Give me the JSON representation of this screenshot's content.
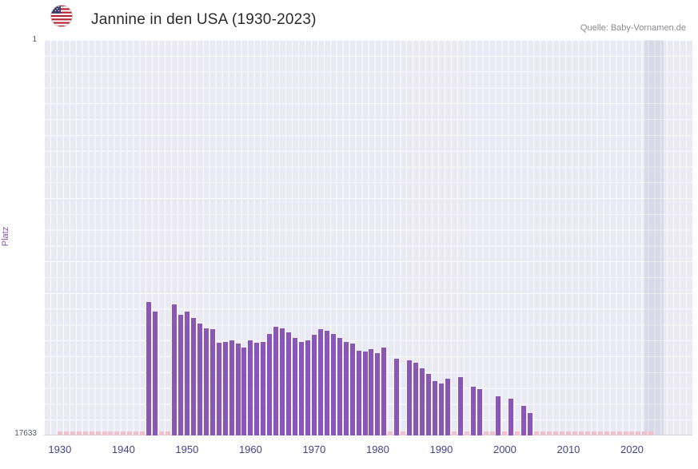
{
  "header": {
    "title": "Jannine in den USA (1930-2023)",
    "source": "Quelle: Baby-Vornamen.de",
    "flag_icon": "us-flag-icon"
  },
  "chart_data": {
    "type": "bar",
    "title": "Jannine in den USA (1930-2023)",
    "xlabel": "",
    "ylabel": "Platz",
    "y_axis": {
      "top_label": "1",
      "bottom_label": "17633",
      "min": 1,
      "max": 17633,
      "inverted": true
    },
    "x_ticks": [
      1930,
      1940,
      1950,
      1960,
      1970,
      1980,
      1990,
      2000,
      2010,
      2020
    ],
    "x_domain": [
      1927.5,
      2029.5
    ],
    "y_domain": [
      1,
      17633
    ],
    "grid": true,
    "legend": "none",
    "bar_color": "#8a57b4",
    "no_data_color": "#f3bfcb",
    "plot_background": "#eaeaf5",
    "highlight_band": {
      "from": 2022,
      "to": 2025,
      "color": "rgba(108,108,140,0.13)"
    },
    "series": [
      {
        "name": "Platz",
        "point_format": [
          "year",
          "rank"
        ],
        "points": [
          [
            1944,
            11700
          ],
          [
            1945,
            12100
          ],
          [
            1948,
            11800
          ],
          [
            1949,
            12250
          ],
          [
            1950,
            12100
          ],
          [
            1951,
            12400
          ],
          [
            1952,
            12650
          ],
          [
            1953,
            12850
          ],
          [
            1954,
            12900
          ],
          [
            1955,
            13500
          ],
          [
            1956,
            13450
          ],
          [
            1957,
            13400
          ],
          [
            1958,
            13550
          ],
          [
            1959,
            13700
          ],
          [
            1960,
            13400
          ],
          [
            1961,
            13500
          ],
          [
            1962,
            13450
          ],
          [
            1963,
            13100
          ],
          [
            1964,
            12800
          ],
          [
            1965,
            12850
          ],
          [
            1966,
            13050
          ],
          [
            1967,
            13300
          ],
          [
            1968,
            13450
          ],
          [
            1969,
            13400
          ],
          [
            1970,
            13150
          ],
          [
            1971,
            12900
          ],
          [
            1972,
            12950
          ],
          [
            1973,
            13100
          ],
          [
            1974,
            13300
          ],
          [
            1975,
            13450
          ],
          [
            1976,
            13550
          ],
          [
            1977,
            13850
          ],
          [
            1978,
            13900
          ],
          [
            1979,
            13800
          ],
          [
            1980,
            13950
          ],
          [
            1981,
            13700
          ],
          [
            1983,
            14200
          ],
          [
            1985,
            14300
          ],
          [
            1986,
            14400
          ],
          [
            1987,
            14650
          ],
          [
            1988,
            14900
          ],
          [
            1989,
            15200
          ],
          [
            1990,
            15300
          ],
          [
            1991,
            15100
          ],
          [
            1993,
            15050
          ],
          [
            1995,
            15450
          ],
          [
            1996,
            15550
          ],
          [
            1999,
            15900
          ],
          [
            2001,
            16000
          ],
          [
            2003,
            16300
          ],
          [
            2004,
            16650
          ]
        ]
      }
    ],
    "no_data_years": [
      1930,
      1931,
      1932,
      1933,
      1934,
      1935,
      1936,
      1937,
      1938,
      1939,
      1940,
      1941,
      1942,
      1943,
      1946,
      1947,
      1982,
      1984,
      1992,
      1994,
      1997,
      1998,
      2000,
      2002,
      2005,
      2006,
      2007,
      2008,
      2009,
      2010,
      2011,
      2012,
      2013,
      2014,
      2015,
      2016,
      2017,
      2018,
      2019,
      2020,
      2021,
      2022,
      2023
    ]
  }
}
